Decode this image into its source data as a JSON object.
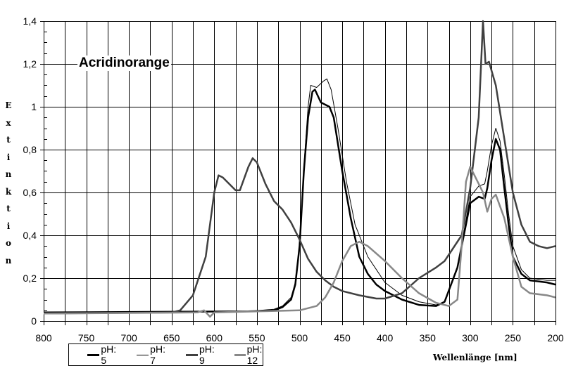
{
  "chart_data": {
    "type": "line",
    "title": "Acridinorange",
    "xlabel": "Wellenlänge [nm]",
    "ylabel": "Extinktion",
    "xlim": [
      800,
      200
    ],
    "x_reversed": true,
    "ylim": [
      0,
      1.4
    ],
    "grid": true,
    "legend_position": "bottom",
    "x_ticks": [
      "800",
      "750",
      "700",
      "650",
      "600",
      "550",
      "500",
      "450",
      "400",
      "350",
      "300",
      "250",
      "200"
    ],
    "y_ticks": [
      "0",
      "0,2",
      "0,4",
      "0,6",
      "0,8",
      "1",
      "1,2",
      "1,4"
    ],
    "series": [
      {
        "name": "pH: 5",
        "color": "#000000",
        "width": 2.5,
        "points": [
          [
            800,
            0.04
          ],
          [
            560,
            0.045
          ],
          [
            530,
            0.05
          ],
          [
            520,
            0.065
          ],
          [
            510,
            0.1
          ],
          [
            505,
            0.17
          ],
          [
            500,
            0.35
          ],
          [
            495,
            0.7
          ],
          [
            490,
            0.95
          ],
          [
            485,
            1.07
          ],
          [
            482,
            1.08
          ],
          [
            475,
            1.02
          ],
          [
            465,
            1.0
          ],
          [
            460,
            0.95
          ],
          [
            450,
            0.7
          ],
          [
            440,
            0.48
          ],
          [
            430,
            0.3
          ],
          [
            420,
            0.22
          ],
          [
            410,
            0.17
          ],
          [
            400,
            0.14
          ],
          [
            380,
            0.1
          ],
          [
            360,
            0.075
          ],
          [
            340,
            0.07
          ],
          [
            330,
            0.09
          ],
          [
            315,
            0.25
          ],
          [
            305,
            0.45
          ],
          [
            300,
            0.55
          ],
          [
            290,
            0.58
          ],
          [
            283,
            0.57
          ],
          [
            280,
            0.62
          ],
          [
            275,
            0.75
          ],
          [
            270,
            0.85
          ],
          [
            265,
            0.8
          ],
          [
            260,
            0.62
          ],
          [
            255,
            0.45
          ],
          [
            250,
            0.3
          ],
          [
            240,
            0.22
          ],
          [
            230,
            0.19
          ],
          [
            210,
            0.18
          ],
          [
            200,
            0.17
          ]
        ]
      },
      {
        "name": "pH: 7",
        "color": "#000000",
        "width": 1,
        "points": [
          [
            800,
            0.04
          ],
          [
            560,
            0.045
          ],
          [
            530,
            0.055
          ],
          [
            520,
            0.07
          ],
          [
            510,
            0.11
          ],
          [
            505,
            0.18
          ],
          [
            500,
            0.36
          ],
          [
            495,
            0.72
          ],
          [
            490,
            1.0
          ],
          [
            487,
            1.1
          ],
          [
            480,
            1.09
          ],
          [
            472,
            1.12
          ],
          [
            468,
            1.13
          ],
          [
            463,
            1.08
          ],
          [
            455,
            0.9
          ],
          [
            445,
            0.65
          ],
          [
            435,
            0.45
          ],
          [
            420,
            0.3
          ],
          [
            400,
            0.18
          ],
          [
            380,
            0.12
          ],
          [
            360,
            0.09
          ],
          [
            340,
            0.075
          ],
          [
            330,
            0.09
          ],
          [
            315,
            0.25
          ],
          [
            305,
            0.47
          ],
          [
            300,
            0.58
          ],
          [
            290,
            0.63
          ],
          [
            283,
            0.64
          ],
          [
            280,
            0.7
          ],
          [
            275,
            0.82
          ],
          [
            270,
            0.9
          ],
          [
            265,
            0.84
          ],
          [
            260,
            0.68
          ],
          [
            255,
            0.5
          ],
          [
            250,
            0.35
          ],
          [
            240,
            0.24
          ],
          [
            230,
            0.2
          ],
          [
            210,
            0.19
          ],
          [
            200,
            0.19
          ]
        ]
      },
      {
        "name": "pH: 9",
        "color": "#404040",
        "width": 2.5,
        "points": [
          [
            800,
            0.035
          ],
          [
            650,
            0.04
          ],
          [
            640,
            0.05
          ],
          [
            625,
            0.12
          ],
          [
            610,
            0.3
          ],
          [
            600,
            0.6
          ],
          [
            595,
            0.68
          ],
          [
            590,
            0.67
          ],
          [
            575,
            0.61
          ],
          [
            570,
            0.61
          ],
          [
            560,
            0.72
          ],
          [
            555,
            0.76
          ],
          [
            550,
            0.74
          ],
          [
            540,
            0.64
          ],
          [
            530,
            0.56
          ],
          [
            520,
            0.52
          ],
          [
            510,
            0.46
          ],
          [
            500,
            0.38
          ],
          [
            490,
            0.29
          ],
          [
            480,
            0.23
          ],
          [
            470,
            0.19
          ],
          [
            460,
            0.16
          ],
          [
            450,
            0.14
          ],
          [
            430,
            0.12
          ],
          [
            410,
            0.105
          ],
          [
            400,
            0.105
          ],
          [
            380,
            0.13
          ],
          [
            360,
            0.2
          ],
          [
            340,
            0.25
          ],
          [
            330,
            0.28
          ],
          [
            310,
            0.4
          ],
          [
            300,
            0.62
          ],
          [
            290,
            0.95
          ],
          [
            285,
            1.4
          ],
          [
            282,
            1.2
          ],
          [
            278,
            1.21
          ],
          [
            270,
            1.1
          ],
          [
            260,
            0.85
          ],
          [
            250,
            0.6
          ],
          [
            240,
            0.45
          ],
          [
            230,
            0.37
          ],
          [
            220,
            0.35
          ],
          [
            210,
            0.34
          ],
          [
            200,
            0.35
          ]
        ]
      },
      {
        "name": "pH: 12",
        "color": "#888888",
        "width": 2.5,
        "points": [
          [
            800,
            0.035
          ],
          [
            620,
            0.04
          ],
          [
            612,
            0.05
          ],
          [
            605,
            0.02
          ],
          [
            600,
            0.04
          ],
          [
            550,
            0.045
          ],
          [
            500,
            0.05
          ],
          [
            480,
            0.07
          ],
          [
            470,
            0.11
          ],
          [
            460,
            0.18
          ],
          [
            450,
            0.28
          ],
          [
            440,
            0.35
          ],
          [
            430,
            0.37
          ],
          [
            420,
            0.35
          ],
          [
            400,
            0.28
          ],
          [
            380,
            0.2
          ],
          [
            360,
            0.13
          ],
          [
            340,
            0.085
          ],
          [
            325,
            0.07
          ],
          [
            315,
            0.1
          ],
          [
            310,
            0.35
          ],
          [
            305,
            0.65
          ],
          [
            300,
            0.72
          ],
          [
            295,
            0.68
          ],
          [
            285,
            0.6
          ],
          [
            280,
            0.51
          ],
          [
            275,
            0.57
          ],
          [
            270,
            0.59
          ],
          [
            260,
            0.48
          ],
          [
            250,
            0.3
          ],
          [
            240,
            0.16
          ],
          [
            230,
            0.13
          ],
          [
            210,
            0.12
          ],
          [
            200,
            0.11
          ]
        ]
      }
    ]
  }
}
